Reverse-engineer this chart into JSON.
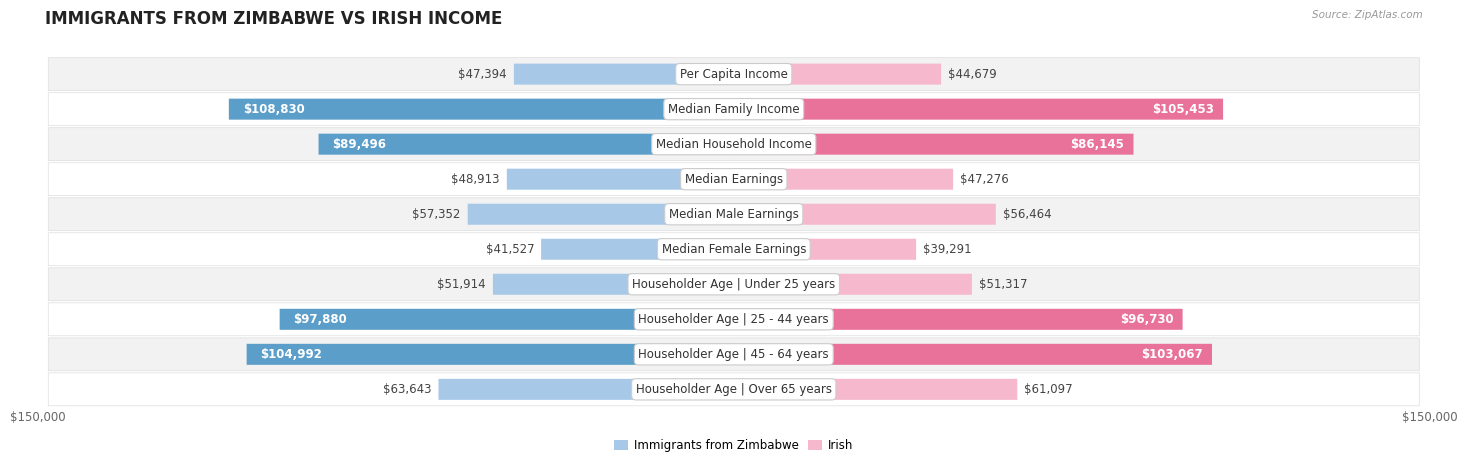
{
  "title": "IMMIGRANTS FROM ZIMBABWE VS IRISH INCOME",
  "source": "Source: ZipAtlas.com",
  "categories": [
    "Per Capita Income",
    "Median Family Income",
    "Median Household Income",
    "Median Earnings",
    "Median Male Earnings",
    "Median Female Earnings",
    "Householder Age | Under 25 years",
    "Householder Age | 25 - 44 years",
    "Householder Age | 45 - 64 years",
    "Householder Age | Over 65 years"
  ],
  "zimbabwe_values": [
    47394,
    108830,
    89496,
    48913,
    57352,
    41527,
    51914,
    97880,
    104992,
    63643
  ],
  "irish_values": [
    44679,
    105453,
    86145,
    47276,
    56464,
    39291,
    51317,
    96730,
    103067,
    61097
  ],
  "zimbabwe_labels": [
    "$47,394",
    "$108,830",
    "$89,496",
    "$48,913",
    "$57,352",
    "$41,527",
    "$51,914",
    "$97,880",
    "$104,992",
    "$63,643"
  ],
  "irish_labels": [
    "$44,679",
    "$105,453",
    "$86,145",
    "$47,276",
    "$56,464",
    "$39,291",
    "$51,317",
    "$96,730",
    "$103,067",
    "$61,097"
  ],
  "zim_color_light": "#a8c8e8",
  "zim_color_dark": "#5b9ec9",
  "irish_color_light": "#f5b8cc",
  "irish_color_dark": "#e8729a",
  "inside_threshold": 70000,
  "max_value": 150000,
  "x_tick_labels": [
    "$150,000",
    "$150,000"
  ],
  "legend_zimbabwe": "Immigrants from Zimbabwe",
  "legend_irish": "Irish",
  "bg_color": "#ffffff",
  "row_colors": [
    "#f2f2f2",
    "#ffffff"
  ],
  "title_fontsize": 12,
  "label_fontsize": 8.5,
  "bar_height": 0.6
}
